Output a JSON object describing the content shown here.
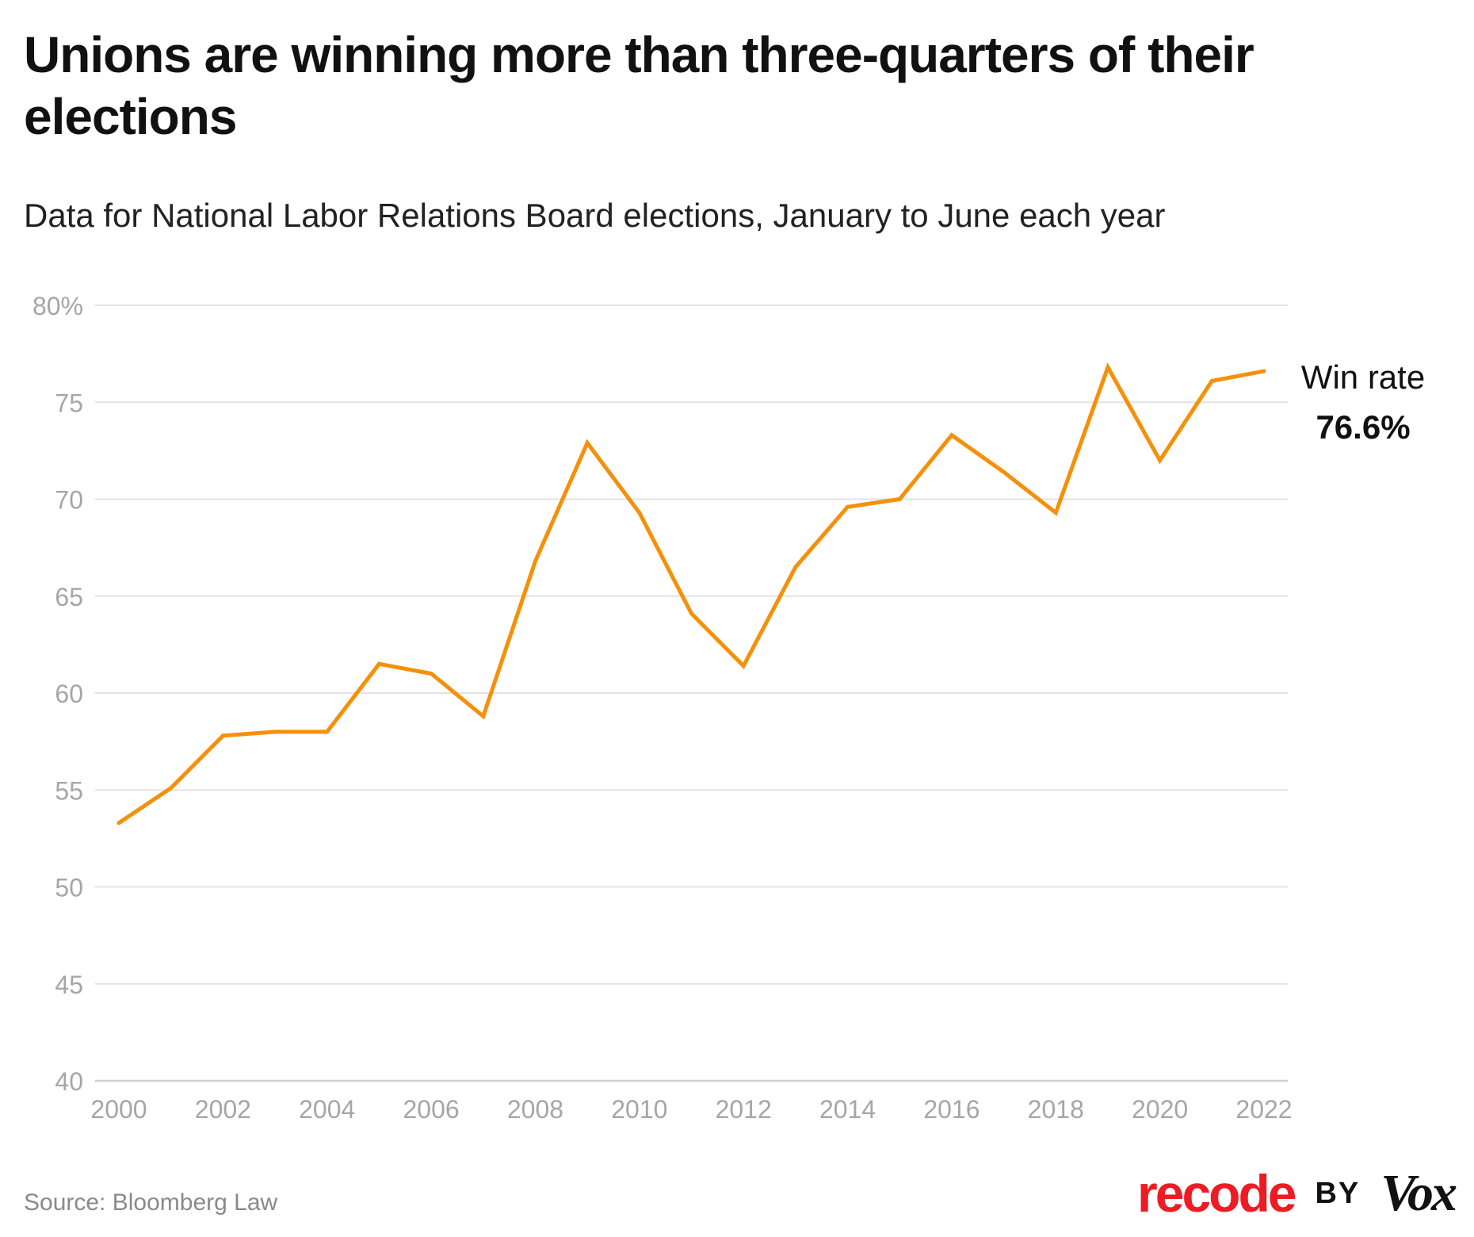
{
  "header": {
    "title": "Unions are winning more than three-quarters of their elections",
    "subtitle": "Data for National Labor Relations Board elections, January to June each year"
  },
  "footer": {
    "source": "Source: Bloomberg Law",
    "brand_recode": "recode",
    "brand_by": "BY",
    "brand_vox": "Vox"
  },
  "colors": {
    "line": "#f5900a",
    "grid": "#e3e3e3",
    "tick_text": "#a6a6a6",
    "annotation": "#111111",
    "brand_red": "#ed1c24"
  },
  "chart_data": {
    "type": "line",
    "title": "Unions are winning more than three-quarters of their elections",
    "subtitle": "Data for National Labor Relations Board elections, January to June each year",
    "xlabel": "",
    "ylabel": "",
    "xlim": [
      2000,
      2022
    ],
    "ylim": [
      40,
      80
    ],
    "x_ticks": [
      2000,
      2002,
      2004,
      2006,
      2008,
      2010,
      2012,
      2014,
      2016,
      2018,
      2020,
      2022
    ],
    "x_tick_labels": [
      "2000",
      "2002",
      "2004",
      "2006",
      "2008",
      "2010",
      "2012",
      "2014",
      "2016",
      "2018",
      "2020",
      "2022"
    ],
    "y_ticks": [
      40,
      45,
      50,
      55,
      60,
      65,
      70,
      75,
      80
    ],
    "y_tick_labels": [
      "40",
      "45",
      "50",
      "55",
      "60",
      "65",
      "70",
      "75",
      "80%"
    ],
    "grid": true,
    "legend": "none",
    "x": [
      2000,
      2001,
      2002,
      2003,
      2004,
      2005,
      2006,
      2007,
      2008,
      2009,
      2010,
      2011,
      2012,
      2013,
      2014,
      2015,
      2016,
      2017,
      2018,
      2019,
      2020,
      2021,
      2022
    ],
    "series": [
      {
        "name": "Win rate",
        "values": [
          53.3,
          55.1,
          57.8,
          58.0,
          58.0,
          61.5,
          61.0,
          58.8,
          66.8,
          72.9,
          69.3,
          64.1,
          61.4,
          66.5,
          69.6,
          70.0,
          73.3,
          71.4,
          69.3,
          76.8,
          72.0,
          76.1,
          76.6
        ]
      }
    ],
    "annotations": [
      {
        "series_label": "Win rate",
        "value_label": "76.6%"
      }
    ]
  }
}
